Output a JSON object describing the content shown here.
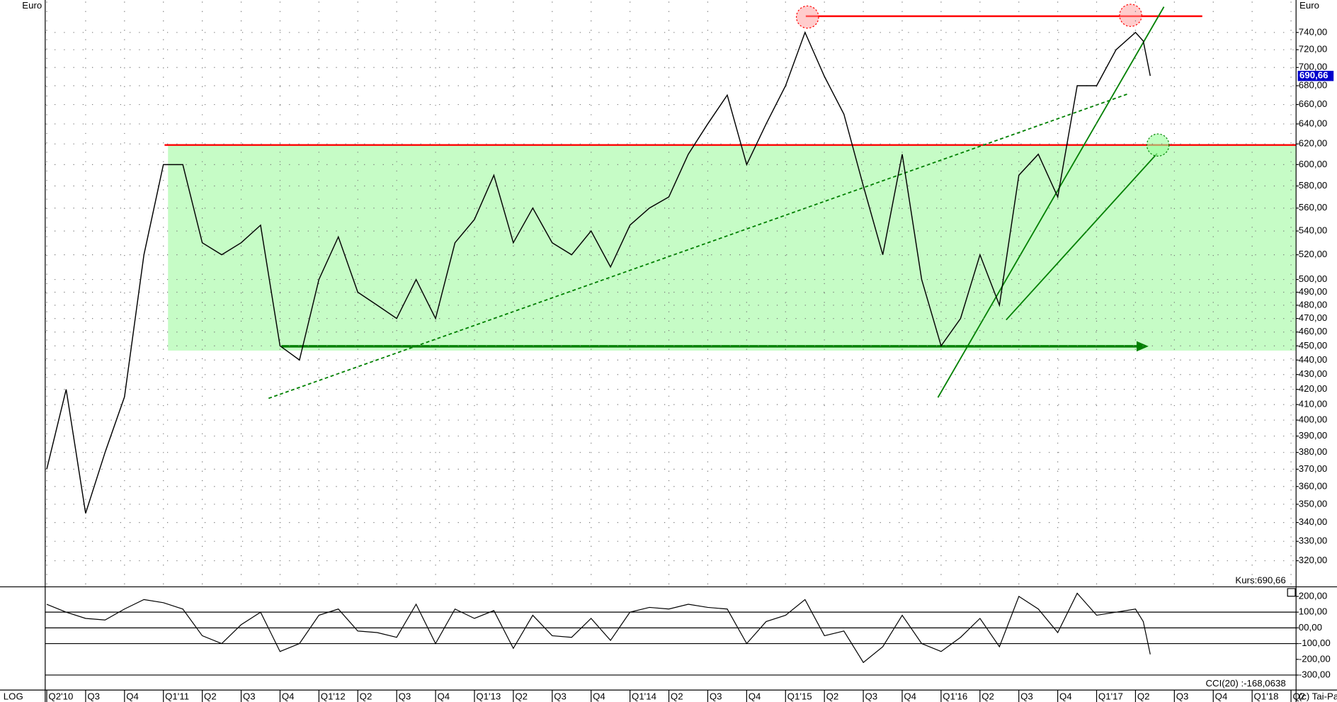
{
  "chart_data": {
    "type": "line",
    "scale": "log",
    "grid": true,
    "y_unit": "Euro",
    "price_label": "Kurs:690,66",
    "last_price_label": "690,66",
    "last_price": 690.66,
    "scale_label": "LOG",
    "copyright": "(c) Tai-Pa",
    "xlim": [
      -0.04,
      32.13
    ],
    "xticks": [
      {
        "value": 0,
        "label": "Q2'10"
      },
      {
        "value": 1,
        "label": "Q3"
      },
      {
        "value": 2,
        "label": "Q4"
      },
      {
        "value": 3,
        "label": "Q1'11"
      },
      {
        "value": 4,
        "label": "Q2"
      },
      {
        "value": 5,
        "label": "Q3"
      },
      {
        "value": 6,
        "label": "Q4"
      },
      {
        "value": 7,
        "label": "Q1'12"
      },
      {
        "value": 8,
        "label": "Q2"
      },
      {
        "value": 9,
        "label": "Q3"
      },
      {
        "value": 10,
        "label": "Q4"
      },
      {
        "value": 11,
        "label": "Q1'13"
      },
      {
        "value": 12,
        "label": "Q2"
      },
      {
        "value": 13,
        "label": "Q3"
      },
      {
        "value": 14,
        "label": "Q4"
      },
      {
        "value": 15,
        "label": "Q1'14"
      },
      {
        "value": 16,
        "label": "Q2"
      },
      {
        "value": 17,
        "label": "Q3"
      },
      {
        "value": 18,
        "label": "Q4"
      },
      {
        "value": 19,
        "label": "Q1'15"
      },
      {
        "value": 20,
        "label": "Q2"
      },
      {
        "value": 21,
        "label": "Q3"
      },
      {
        "value": 22,
        "label": "Q4"
      },
      {
        "value": 23,
        "label": "Q1'16"
      },
      {
        "value": 24,
        "label": "Q2"
      },
      {
        "value": 25,
        "label": "Q3"
      },
      {
        "value": 26,
        "label": "Q4"
      },
      {
        "value": 27,
        "label": "Q1'17"
      },
      {
        "value": 28,
        "label": "Q2"
      },
      {
        "value": 29,
        "label": "Q3"
      },
      {
        "value": 30,
        "label": "Q4"
      },
      {
        "value": 31,
        "label": "Q1'18"
      },
      {
        "value": 32,
        "label": "Q2"
      }
    ],
    "ylim": [
      307,
      777
    ],
    "yticks": [
      {
        "value": 320,
        "label": "320,00"
      },
      {
        "value": 330,
        "label": "330,00"
      },
      {
        "value": 340,
        "label": "340,00"
      },
      {
        "value": 350,
        "label": "350,00"
      },
      {
        "value": 360,
        "label": "360,00"
      },
      {
        "value": 370,
        "label": "370,00"
      },
      {
        "value": 380,
        "label": "380,00"
      },
      {
        "value": 390,
        "label": "390,00"
      },
      {
        "value": 400,
        "label": "400,00"
      },
      {
        "value": 410,
        "label": "410,00"
      },
      {
        "value": 420,
        "label": "420,00"
      },
      {
        "value": 430,
        "label": "430,00"
      },
      {
        "value": 440,
        "label": "440,00"
      },
      {
        "value": 450,
        "label": "450,00"
      },
      {
        "value": 460,
        "label": "460,00"
      },
      {
        "value": 470,
        "label": "470,00"
      },
      {
        "value": 480,
        "label": "480,00"
      },
      {
        "value": 490,
        "label": "490,00"
      },
      {
        "value": 500,
        "label": "500,00"
      },
      {
        "value": 520,
        "label": "520,00"
      },
      {
        "value": 540,
        "label": "540,00"
      },
      {
        "value": 560,
        "label": "560,00"
      },
      {
        "value": 580,
        "label": "580,00"
      },
      {
        "value": 600,
        "label": "600,00"
      },
      {
        "value": 620,
        "label": "620,00"
      },
      {
        "value": 640,
        "label": "640,00"
      },
      {
        "value": 660,
        "label": "660,00"
      },
      {
        "value": 680,
        "label": "680,00"
      },
      {
        "value": 700,
        "label": "700,00"
      },
      {
        "value": 720,
        "label": "720,00"
      },
      {
        "value": 740,
        "label": "740,00"
      }
    ],
    "x": [
      0,
      0.5,
      1,
      1.5,
      2,
      2.5,
      3,
      3.5,
      4,
      4.5,
      5,
      5.5,
      6,
      6.5,
      7,
      7.5,
      8,
      8.5,
      9,
      9.5,
      10,
      10.5,
      11,
      11.5,
      12,
      12.5,
      13,
      13.5,
      14,
      14.5,
      15,
      15.5,
      16,
      16.5,
      17,
      17.5,
      18,
      18.5,
      19,
      19.5,
      20,
      20.5,
      21,
      21.5,
      22,
      22.5,
      23,
      23.5,
      24,
      24.5,
      25,
      25.5,
      26,
      26.5,
      27,
      27.5,
      28,
      28.2,
      28.38
    ],
    "series": [
      {
        "color": "#000000",
        "values": [
          370,
          420,
          345,
          380,
          415,
          520,
          600,
          600,
          530,
          520,
          530,
          545,
          450,
          440,
          500,
          535,
          490,
          480,
          470,
          500,
          470,
          530,
          550,
          590,
          530,
          560,
          530,
          520,
          540,
          510,
          545,
          560,
          570,
          610,
          640,
          670,
          600,
          640,
          680,
          740,
          690,
          650,
          580,
          520,
          610,
          500,
          450,
          470,
          520,
          480,
          590,
          610,
          570,
          680,
          680,
          720,
          740,
          730,
          690.66
        ]
      }
    ],
    "cci": {
      "label": "CCI(20) :-168,0638",
      "ylim": [
        -390,
        250
      ],
      "yticks": [
        {
          "value": 200,
          "label": "200,00"
        },
        {
          "value": 100,
          "label": "100,00"
        },
        {
          "value": 0,
          "label": "00,00"
        },
        {
          "value": -100,
          "label": "-100,00"
        },
        {
          "value": -200,
          "label": "-200,00"
        },
        {
          "value": -300,
          "label": "-300,00"
        }
      ],
      "levels": [
        100,
        0,
        -100
      ],
      "values": [
        150,
        100,
        60,
        50,
        120,
        180,
        160,
        120,
        -50,
        -100,
        20,
        100,
        -150,
        -100,
        80,
        120,
        -20,
        -30,
        -60,
        150,
        -100,
        120,
        60,
        110,
        -130,
        80,
        -50,
        -60,
        60,
        -80,
        100,
        130,
        120,
        150,
        130,
        120,
        -100,
        40,
        80,
        180,
        -50,
        -20,
        -220,
        -120,
        80,
        -100,
        -150,
        -60,
        60,
        -120,
        200,
        120,
        -30,
        220,
        80,
        100,
        120,
        40,
        -168.0638
      ]
    }
  }
}
